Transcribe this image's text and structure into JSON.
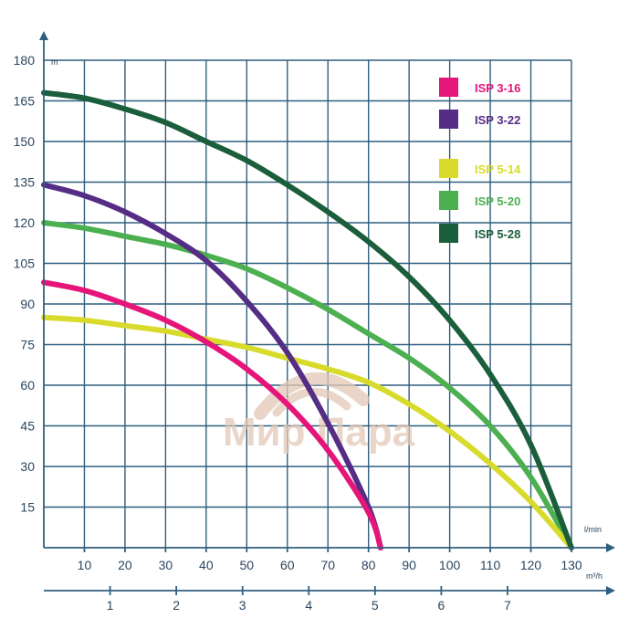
{
  "chart_data": {
    "type": "line",
    "title": "",
    "ylabel": "m",
    "xlabel": "l/min",
    "x2label": "m³/h",
    "ylim": [
      0,
      180
    ],
    "xlim": [
      0,
      130
    ],
    "x2lim": [
      0,
      7.8
    ],
    "yticks": [
      "15",
      "30",
      "45",
      "60",
      "75",
      "90",
      "105",
      "120",
      "135",
      "150",
      "165",
      "180"
    ],
    "xticks": [
      "10",
      "20",
      "30",
      "40",
      "50",
      "60",
      "70",
      "80",
      "90",
      "100",
      "110",
      "120",
      "130"
    ],
    "x2ticks": [
      "1",
      "2",
      "3",
      "4",
      "5",
      "6",
      "7"
    ],
    "grid": true,
    "legend_position": "top-right",
    "series": [
      {
        "name": "ISP 3-16",
        "color": "#e5157a",
        "x": [
          0,
          10,
          20,
          30,
          40,
          50,
          60,
          70,
          80,
          83
        ],
        "y": [
          98,
          95,
          90,
          84,
          76,
          66,
          53,
          36,
          13,
          0
        ]
      },
      {
        "name": "ISP 3-22",
        "color": "#552d85",
        "x": [
          0,
          10,
          20,
          30,
          40,
          50,
          60,
          70,
          80,
          83
        ],
        "y": [
          134,
          130,
          124,
          116,
          106,
          91,
          72,
          46,
          15,
          0
        ]
      },
      {
        "name": "ISP 5-14",
        "color": "#d8db2c",
        "x": [
          0,
          10,
          20,
          30,
          40,
          50,
          60,
          70,
          80,
          90,
          100,
          110,
          120,
          130
        ],
        "y": [
          85,
          84,
          82,
          80,
          77,
          74,
          70,
          66,
          61,
          53,
          43,
          31,
          17,
          0
        ]
      },
      {
        "name": "ISP 5-20",
        "color": "#4db050",
        "x": [
          0,
          10,
          20,
          30,
          40,
          50,
          60,
          70,
          80,
          90,
          100,
          110,
          120,
          130
        ],
        "y": [
          120,
          118,
          115,
          112,
          108,
          103,
          96,
          88,
          79,
          70,
          59,
          45,
          26,
          0
        ]
      },
      {
        "name": "ISP 5-28",
        "color": "#1b5e3b",
        "x": [
          0,
          10,
          20,
          30,
          40,
          50,
          60,
          70,
          80,
          90,
          100,
          110,
          120,
          130
        ],
        "y": [
          168,
          166,
          162,
          157,
          150,
          143,
          134,
          124,
          113,
          100,
          84,
          64,
          38,
          0
        ]
      }
    ]
  },
  "watermark": {
    "text": "Мир Пара"
  }
}
